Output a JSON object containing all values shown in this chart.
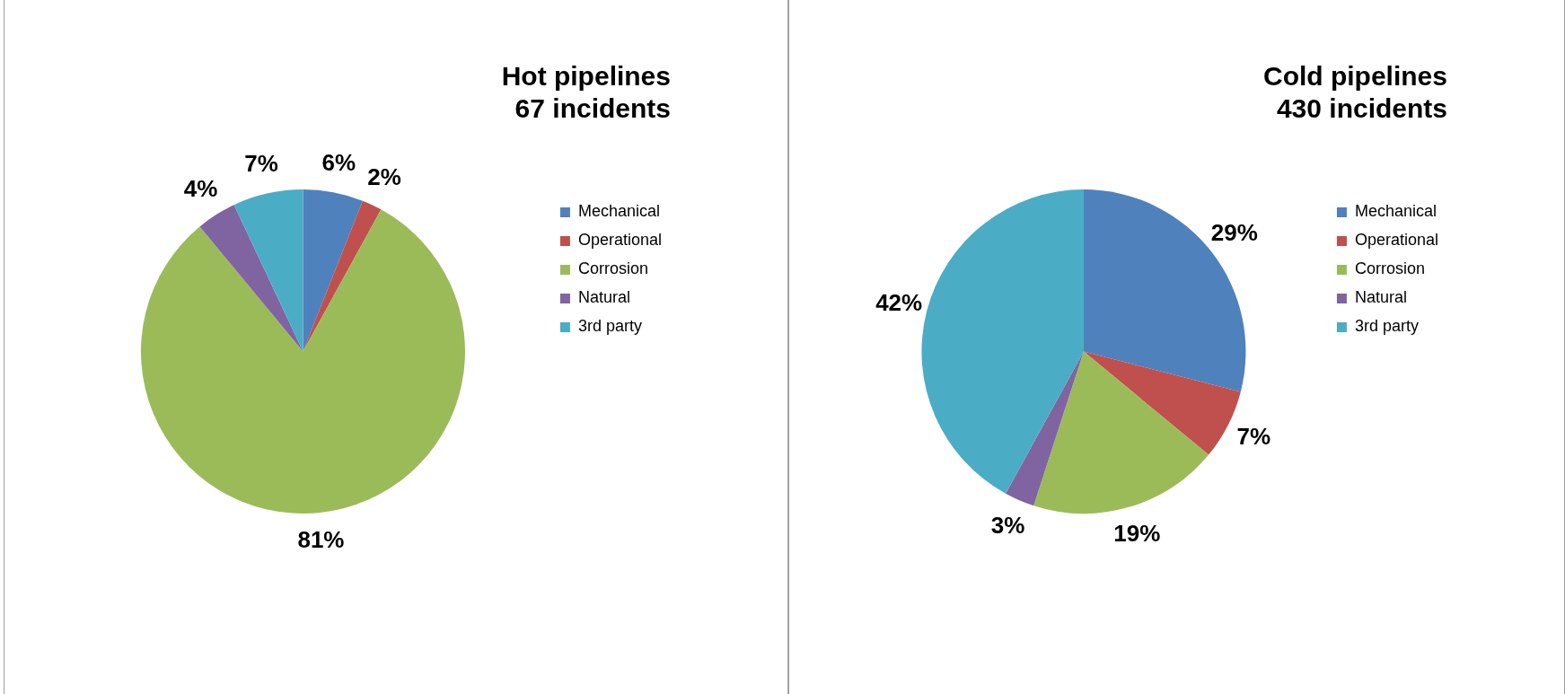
{
  "chart_data": [
    {
      "type": "pie",
      "title": "Hot pipelines",
      "subtitle": "67 incidents",
      "categories": [
        "Mechanical",
        "Operational",
        "Corrosion",
        "Natural",
        "3rd party"
      ],
      "values": [
        6,
        2,
        81,
        4,
        7
      ],
      "colors": [
        "#4f81bd",
        "#c0504d",
        "#9bbb59",
        "#8064a2",
        "#4bacc6"
      ],
      "value_labels": [
        "6%",
        "2%",
        "81%",
        "4%",
        "7%"
      ],
      "legend": "right"
    },
    {
      "type": "pie",
      "title": "Cold pipelines",
      "subtitle": "430 incidents",
      "categories": [
        "Mechanical",
        "Operational",
        "Corrosion",
        "Natural",
        "3rd party"
      ],
      "values": [
        29,
        7,
        19,
        3,
        42
      ],
      "colors": [
        "#4f81bd",
        "#c0504d",
        "#9bbb59",
        "#8064a2",
        "#4bacc6"
      ],
      "value_labels": [
        "29%",
        "7%",
        "19%",
        "3%",
        "42%"
      ],
      "legend": "right"
    }
  ]
}
